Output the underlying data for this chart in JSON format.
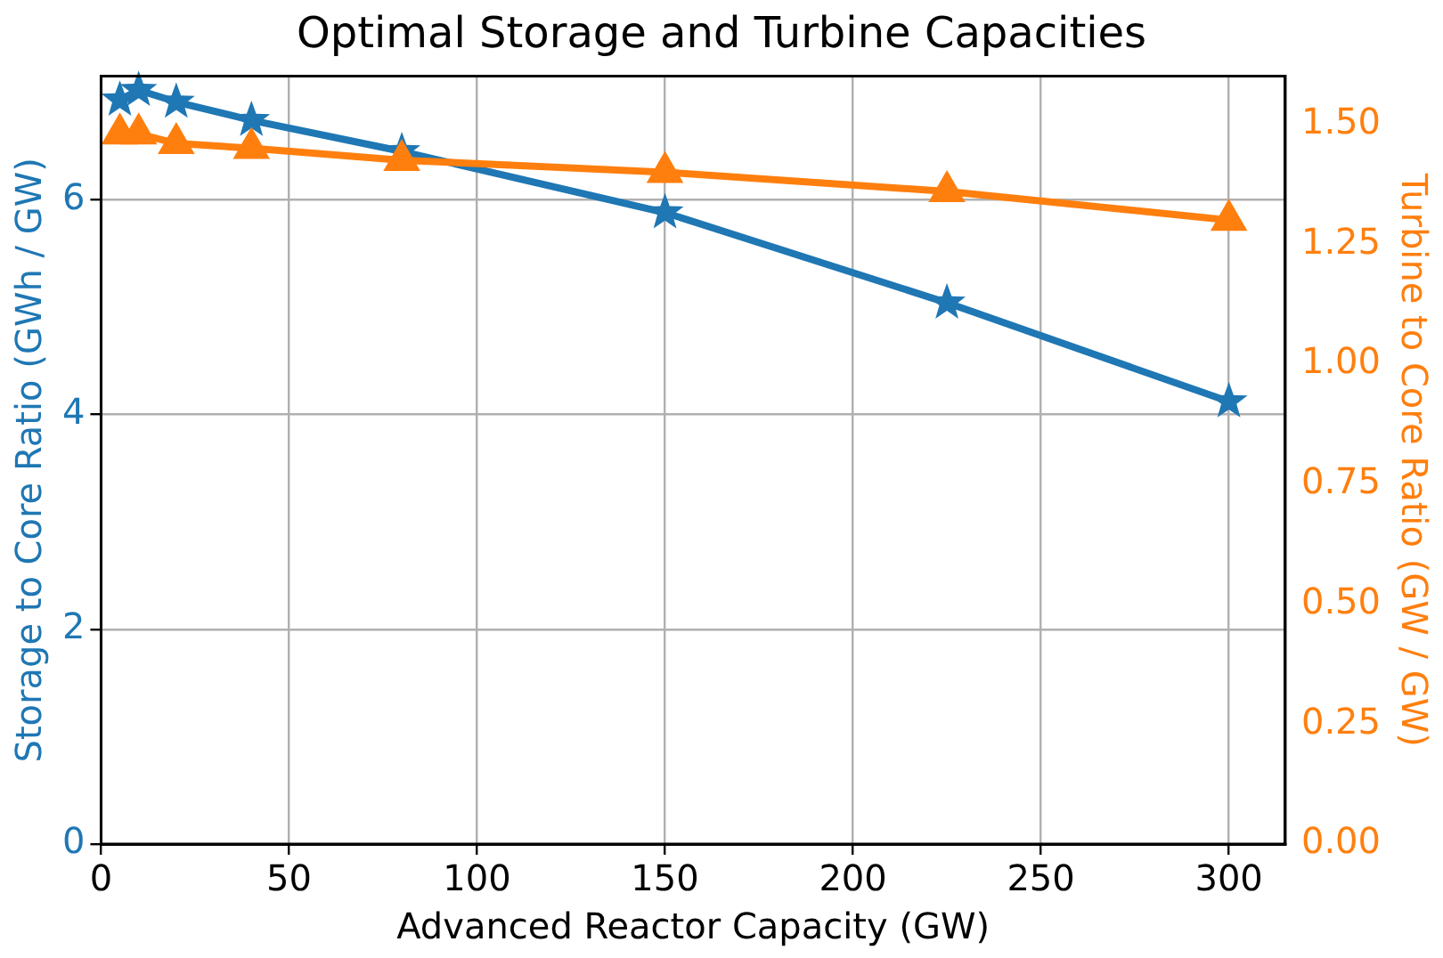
{
  "chart_data": {
    "type": "line",
    "title": "Optimal Storage and Turbine Capacities",
    "xlabel": "Advanced Reactor Capacity (GW)",
    "ylabel": "Storage to Core Ratio (GWh / GW)",
    "y2label": "Turbine to Core Ratio (GW / GW)",
    "x": [
      5,
      10,
      20,
      40,
      80,
      150,
      225,
      300
    ],
    "series": [
      {
        "color": "#1f77b4",
        "marker": "star",
        "values": [
          6.93,
          7.02,
          6.91,
          6.74,
          6.45,
          5.88,
          5.04,
          4.12
        ]
      },
      {
        "color": "#ff7f0e",
        "marker": "triangle",
        "axis": "y2",
        "values": [
          1.48,
          1.48,
          1.46,
          1.45,
          1.425,
          1.4,
          1.36,
          1.3
        ]
      }
    ],
    "xlim": [
      0,
      315
    ],
    "xticks": [
      0,
      50,
      100,
      150,
      200,
      250,
      300
    ],
    "ylim": [
      0,
      7.15
    ],
    "yticks": [
      0,
      2,
      4,
      6
    ],
    "y2lim": [
      0,
      1.6
    ],
    "y2ticks": [
      {
        "value": 0,
        "label": "0.00"
      },
      {
        "value": 0.25,
        "label": "0.25"
      },
      {
        "value": 0.5,
        "label": "0.50"
      },
      {
        "value": 0.75,
        "label": "0.75"
      },
      {
        "value": 1,
        "label": "1.00"
      },
      {
        "value": 1.25,
        "label": "1.25"
      },
      {
        "value": 1.5,
        "label": "1.50"
      }
    ],
    "grid": true,
    "legend": false,
    "line_style": "solid"
  }
}
